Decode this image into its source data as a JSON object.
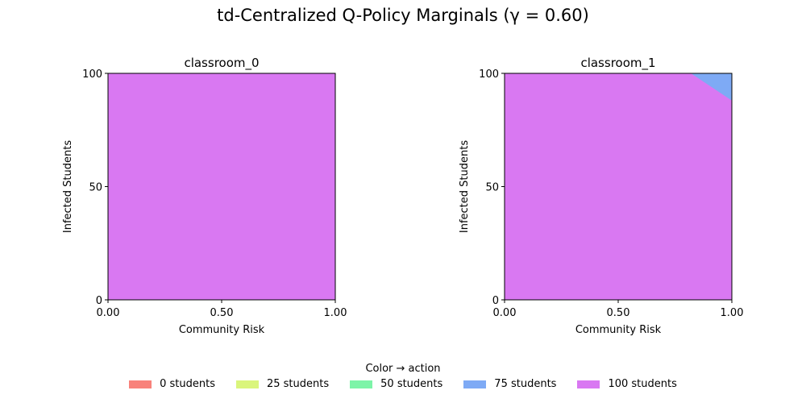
{
  "chart_data": {
    "title": "td-Centralized Q-Policy Marginals (γ = 0.60)",
    "type": "heatmap",
    "panels": [
      {
        "title": "classroom_0",
        "xlabel": "Community Risk",
        "ylabel": "Infected Students",
        "xlim": [
          0,
          1
        ],
        "ylim": [
          0,
          100
        ],
        "xticks": [
          "0.00",
          "0.50",
          "1.00"
        ],
        "yticks": [
          "0",
          "50",
          "100"
        ],
        "regions": [
          {
            "action": "100 students",
            "polygon": [
              [
                0,
                0
              ],
              [
                1,
                0
              ],
              [
                1,
                100
              ],
              [
                0,
                100
              ]
            ]
          }
        ]
      },
      {
        "title": "classroom_1",
        "xlabel": "Community Risk",
        "ylabel": "Infected Students",
        "xlim": [
          0,
          1
        ],
        "ylim": [
          0,
          100
        ],
        "xticks": [
          "0.00",
          "0.50",
          "1.00"
        ],
        "yticks": [
          "0",
          "50",
          "100"
        ],
        "regions": [
          {
            "action": "100 students",
            "polygon": [
              [
                0,
                0
              ],
              [
                1,
                0
              ],
              [
                1,
                100
              ],
              [
                0,
                100
              ]
            ]
          },
          {
            "action": "75 students",
            "polygon": [
              [
                0.82,
                100
              ],
              [
                1,
                100
              ],
              [
                1,
                88
              ]
            ]
          }
        ]
      }
    ],
    "legend": {
      "title": "Color → action",
      "placement": "bottom-center",
      "items": [
        {
          "label": "0 students",
          "color": "#f8827b"
        },
        {
          "label": "25 students",
          "color": "#daf57c"
        },
        {
          "label": "50 students",
          "color": "#7df4a8"
        },
        {
          "label": "75 students",
          "color": "#7eaaf5"
        },
        {
          "label": "100 students",
          "color": "#d978f2"
        }
      ]
    }
  }
}
